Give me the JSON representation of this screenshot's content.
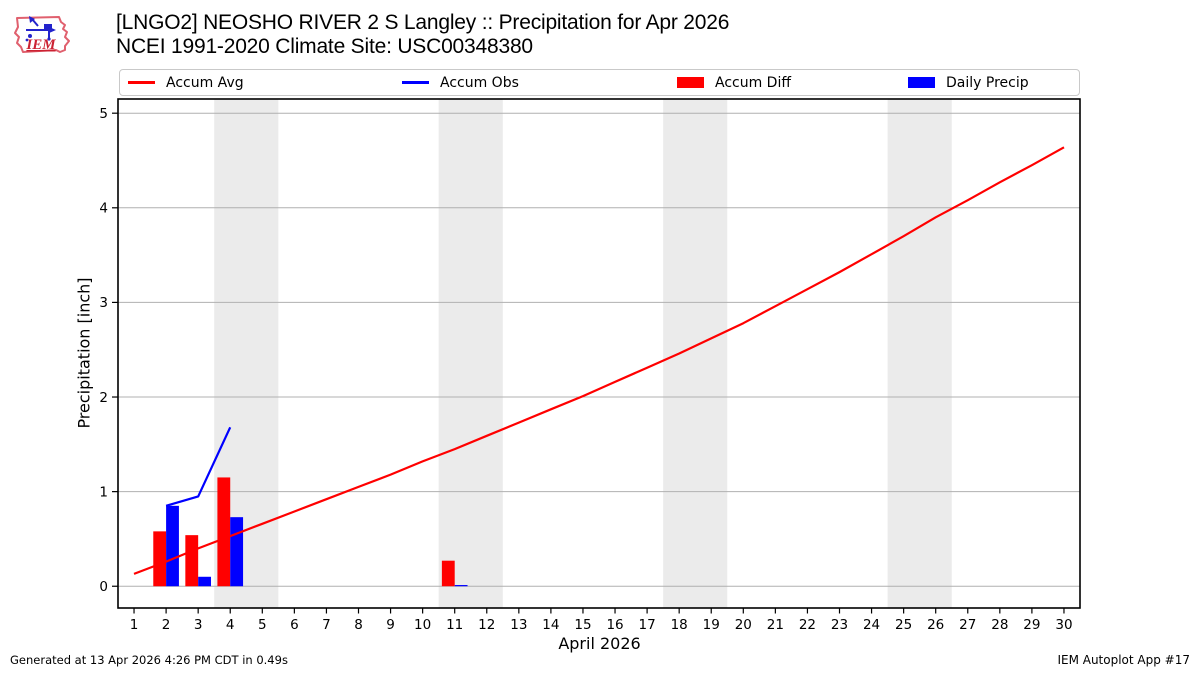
{
  "header": {
    "title_line1": "[LNGO2] NEOSHO RIVER 2 S Langley :: Precipitation for Apr 2026",
    "title_line2": "NCEI 1991-2020 Climate Site: USC00348380",
    "logo_text": "IEM"
  },
  "legend": {
    "items": [
      {
        "label": "Accum Avg",
        "swatch": "line",
        "color": "#ff0000"
      },
      {
        "label": "Accum Obs",
        "swatch": "line",
        "color": "#0000ff"
      },
      {
        "label": "Accum Diff",
        "swatch": "rect",
        "color": "#ff0000"
      },
      {
        "label": "Daily Precip",
        "swatch": "rect",
        "color": "#0000ff"
      }
    ]
  },
  "footer": {
    "left": "Generated at 13 Apr 2026 4:26 PM CDT in 0.49s",
    "right": "IEM Autoplot App #17"
  },
  "chart_data": {
    "type": "line+bar",
    "title": "[LNGO2] NEOSHO RIVER 2 S Langley :: Precipitation for Apr 2026",
    "subtitle": "NCEI 1991-2020 Climate Site: USC00348380",
    "xlabel": "April 2026",
    "ylabel": "Precipitation [inch]",
    "xlim": [
      0.5,
      30.5
    ],
    "ylim": [
      -0.23,
      5.15
    ],
    "x_ticks": [
      1,
      2,
      3,
      4,
      5,
      6,
      7,
      8,
      9,
      10,
      11,
      12,
      13,
      14,
      15,
      16,
      17,
      18,
      19,
      20,
      21,
      22,
      23,
      24,
      25,
      26,
      27,
      28,
      29,
      30
    ],
    "y_ticks": [
      0,
      1,
      2,
      3,
      4,
      5
    ],
    "grid": true,
    "grid_color": "#b0b0b0",
    "band_color": "#ebebeb",
    "weekend_bands": [
      [
        3.5,
        5.5
      ],
      [
        10.5,
        12.5
      ],
      [
        17.5,
        19.5
      ],
      [
        24.5,
        26.5
      ]
    ],
    "series": [
      {
        "name": "Accum Diff",
        "type": "bar",
        "color": "#ff0000",
        "bar_offset": -0.4,
        "bar_width": 0.4,
        "x": [
          2,
          3,
          4,
          11
        ],
        "y": [
          0.58,
          0.54,
          1.15,
          0.27
        ]
      },
      {
        "name": "Daily Precip",
        "type": "bar",
        "color": "#0000ff",
        "bar_offset": 0,
        "bar_width": 0.4,
        "x": [
          2,
          3,
          4,
          11
        ],
        "y": [
          0.85,
          0.1,
          0.73,
          0.01
        ]
      },
      {
        "name": "Accum Avg",
        "type": "line",
        "color": "#ff0000",
        "x": [
          1,
          2,
          3,
          4,
          5,
          6,
          7,
          8,
          9,
          10,
          11,
          12,
          13,
          14,
          15,
          16,
          17,
          18,
          19,
          20,
          21,
          22,
          23,
          24,
          25,
          26,
          27,
          28,
          29,
          30
        ],
        "y": [
          0.13,
          0.26,
          0.4,
          0.53,
          0.66,
          0.79,
          0.92,
          1.05,
          1.18,
          1.32,
          1.45,
          1.59,
          1.73,
          1.87,
          2.01,
          2.16,
          2.31,
          2.46,
          2.62,
          2.78,
          2.96,
          3.14,
          3.32,
          3.51,
          3.7,
          3.9,
          4.08,
          4.27,
          4.45,
          4.64
        ]
      },
      {
        "name": "Accum Obs",
        "type": "line",
        "color": "#0000ff",
        "x": [
          2,
          3,
          4
        ],
        "y": [
          0.85,
          0.95,
          1.68
        ]
      }
    ]
  }
}
